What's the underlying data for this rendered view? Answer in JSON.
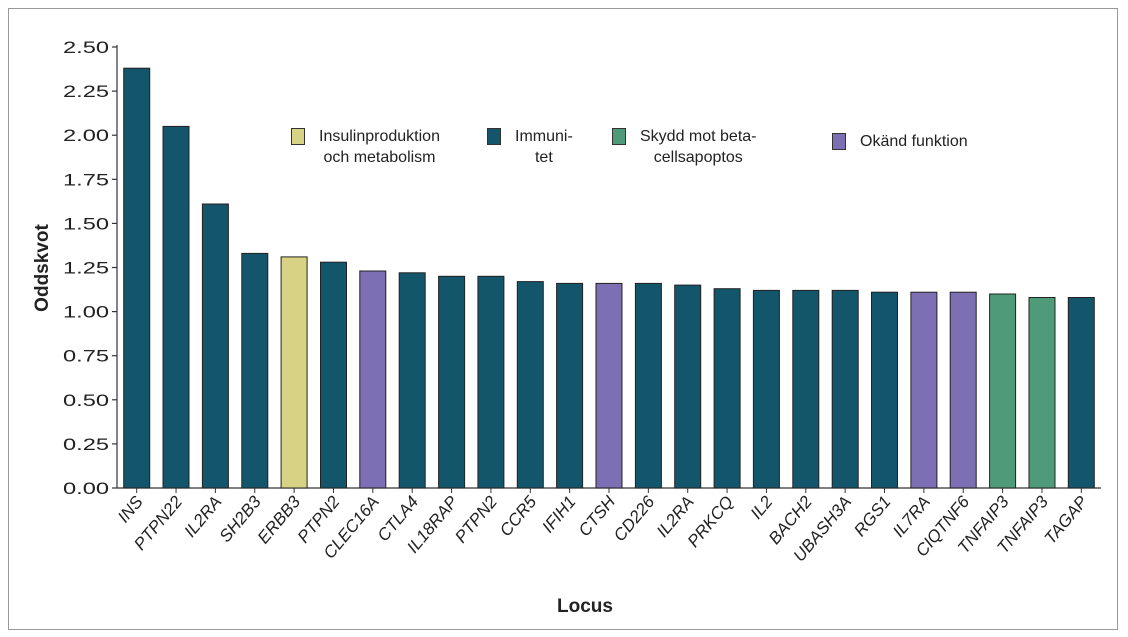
{
  "chart_data": {
    "type": "bar",
    "ylabel": "Oddskvot",
    "xlabel": "Locus",
    "ylim": [
      0,
      2.5
    ],
    "yticks": [
      "0.00",
      "0.25",
      "0.50",
      "0.75",
      "1.00",
      "1.25",
      "1.50",
      "1.75",
      "2.00",
      "2.25",
      "2.50"
    ],
    "grid": false,
    "legend_position": "top-center",
    "categories": [
      "INS",
      "PTPN22",
      "IL2RA",
      "SH2B3",
      "ERBB3",
      "PTPN2",
      "CLEC16A",
      "CTLA4",
      "IL18RAP",
      "PTPN2",
      "CCR5",
      "IFIH1",
      "CTSH",
      "CD226",
      "IL2RA",
      "PRKCQ",
      "IL2",
      "BACH2",
      "UBASH3A",
      "RGS1",
      "IL7RA",
      "CIQTNF6",
      "TNFAIP3",
      "TNFAIP3",
      "TAGAP"
    ],
    "values": [
      2.38,
      2.05,
      1.61,
      1.33,
      1.31,
      1.28,
      1.23,
      1.22,
      1.2,
      1.2,
      1.17,
      1.16,
      1.16,
      1.16,
      1.15,
      1.13,
      1.12,
      1.12,
      1.12,
      1.11,
      1.11,
      1.11,
      1.1,
      1.08,
      1.08
    ],
    "groups": [
      "immunity",
      "immunity",
      "immunity",
      "immunity",
      "insulin",
      "immunity",
      "unknown",
      "immunity",
      "immunity",
      "immunity",
      "immunity",
      "immunity",
      "unknown",
      "immunity",
      "immunity",
      "immunity",
      "immunity",
      "immunity",
      "immunity",
      "immunity",
      "unknown",
      "unknown",
      "protection",
      "protection",
      "immunity"
    ],
    "legend": [
      {
        "key": "insulin",
        "label": "Insulinproduktion\noch metabolism",
        "color": "#d8d285"
      },
      {
        "key": "immunity",
        "label": "Immuni-\ntet",
        "color": "#13566b"
      },
      {
        "key": "protection",
        "label": "Skydd mot beta-\ncellsapoptos",
        "color": "#4f9a79"
      },
      {
        "key": "unknown",
        "label": "Okänd funktion",
        "color": "#7c6fb4"
      }
    ]
  }
}
